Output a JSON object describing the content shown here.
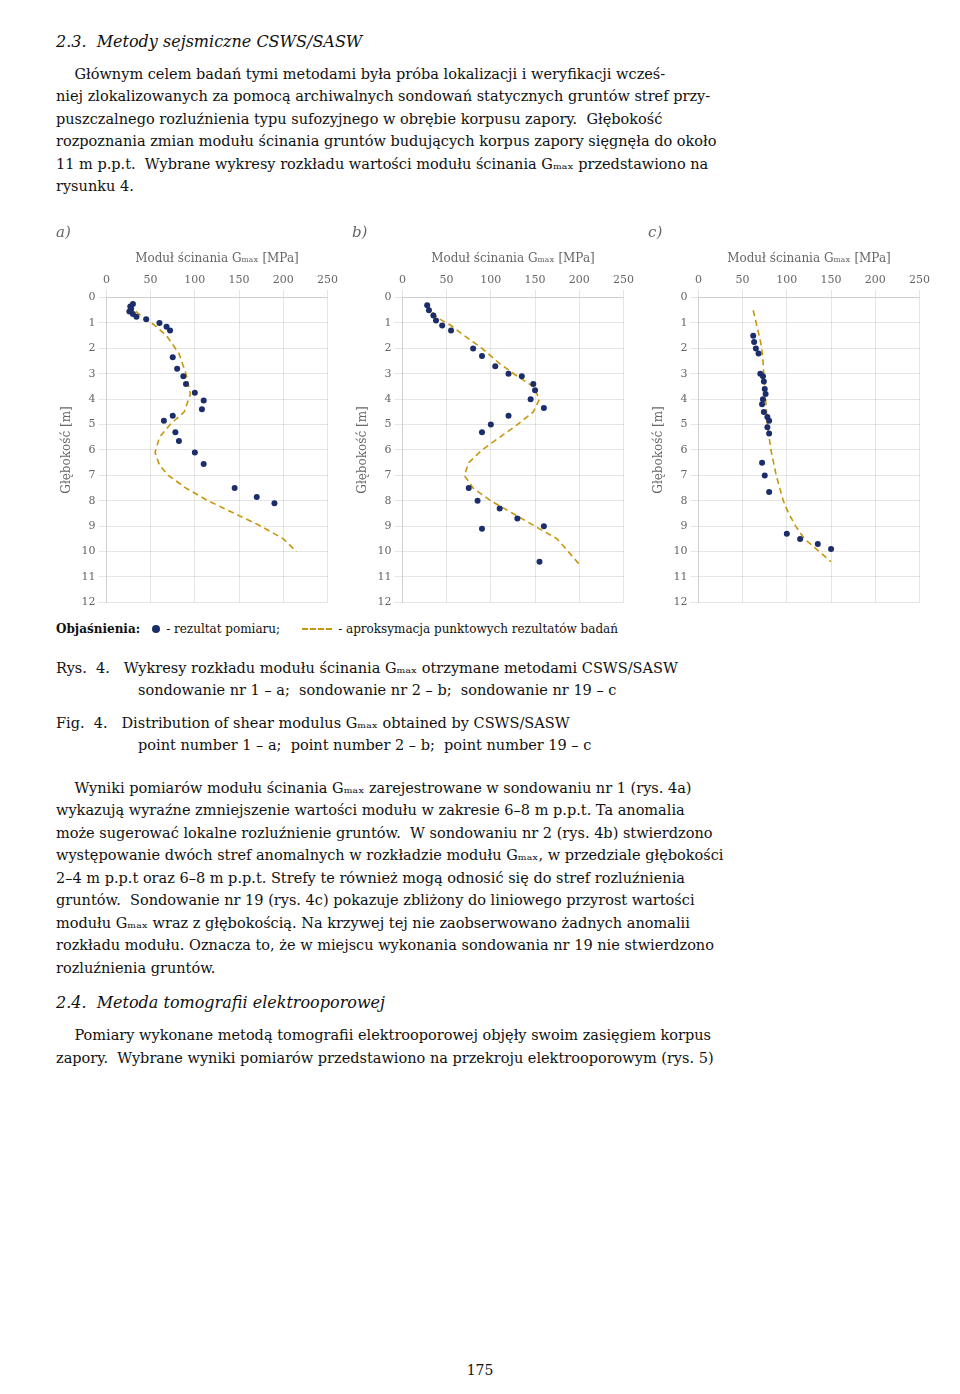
{
  "chart_data": [
    {
      "type": "scatter",
      "title": "a)",
      "x_label": "Moduł ścinania Gₘₐₓ [MPa]",
      "y_label": "Głębokość [m]",
      "xlim": [
        0,
        250
      ],
      "ylim": [
        12,
        0
      ],
      "xticks": [
        0,
        50,
        100,
        150,
        200,
        250
      ],
      "yticks": [
        0,
        1,
        2,
        3,
        4,
        5,
        6,
        7,
        8,
        9,
        10,
        11,
        12
      ],
      "grid": true,
      "legend": "bottom",
      "series": [
        {
          "name": "- rezultat pomiaru;",
          "type": "scatter",
          "color": "#1c2d6b",
          "marker": "circle",
          "x": [
            30,
            27,
            28,
            26,
            30,
            34,
            45,
            60,
            68,
            72,
            75,
            80,
            87,
            90,
            100,
            110,
            108,
            75,
            65,
            78,
            82,
            100,
            110,
            145,
            170,
            190
          ],
          "values": [
            0.25,
            0.35,
            0.45,
            0.55,
            0.65,
            0.75,
            0.85,
            1.0,
            1.15,
            1.3,
            2.35,
            2.8,
            3.1,
            3.4,
            3.75,
            4.05,
            4.4,
            4.65,
            4.85,
            5.3,
            5.65,
            6.1,
            6.55,
            7.5,
            7.85,
            8.1
          ]
        },
        {
          "name": "- aproksymacja punktowych rezultatów badań",
          "type": "line",
          "color": "#c8960a",
          "line_style": "dashed",
          "marker": "none",
          "x": [
            28,
            30,
            35,
            45,
            55,
            68,
            82,
            90,
            95,
            88,
            72,
            60,
            55,
            60,
            70,
            90,
            115,
            145,
            175,
            200,
            215
          ],
          "values": [
            0.2,
            0.4,
            0.6,
            0.85,
            1.1,
            1.5,
            2.2,
            3.0,
            3.8,
            4.5,
            5.0,
            5.5,
            6.1,
            6.6,
            7.0,
            7.5,
            8.0,
            8.5,
            9.0,
            9.5,
            10.0
          ]
        }
      ]
    },
    {
      "type": "scatter",
      "title": "b)",
      "x_label": "Moduł ścinania Gₘₐₓ [MPa]",
      "y_label": "Głębokość [m]",
      "xlim": [
        0,
        250
      ],
      "ylim": [
        12,
        0
      ],
      "xticks": [
        0,
        50,
        100,
        150,
        200,
        250
      ],
      "yticks": [
        0,
        1,
        2,
        3,
        4,
        5,
        6,
        7,
        8,
        9,
        10,
        11,
        12
      ],
      "grid": true,
      "legend": "bottom",
      "series": [
        {
          "name": "- rezultat pomiaru;",
          "type": "scatter",
          "color": "#1c2d6b",
          "marker": "circle",
          "x": [
            28,
            30,
            35,
            38,
            45,
            55,
            80,
            90,
            105,
            120,
            135,
            148,
            150,
            145,
            160,
            120,
            100,
            90,
            75,
            85,
            110,
            130,
            160,
            90,
            155
          ],
          "values": [
            0.3,
            0.5,
            0.7,
            0.9,
            1.1,
            1.3,
            2.0,
            2.3,
            2.7,
            3.0,
            3.1,
            3.4,
            3.65,
            4.0,
            4.35,
            4.65,
            5.0,
            5.3,
            7.5,
            8.0,
            8.3,
            8.7,
            9.0,
            9.1,
            10.4
          ]
        },
        {
          "name": "- aproksymacja punktowych rezultatów badań",
          "type": "line",
          "color": "#c8960a",
          "line_style": "dashed",
          "marker": "none",
          "x": [
            28,
            32,
            40,
            55,
            70,
            90,
            110,
            130,
            148,
            155,
            148,
            130,
            110,
            90,
            75,
            70,
            80,
            100,
            125,
            150,
            175,
            200
          ],
          "values": [
            0.25,
            0.5,
            0.8,
            1.1,
            1.5,
            2.0,
            2.6,
            3.1,
            3.5,
            4.0,
            4.5,
            5.0,
            5.5,
            6.0,
            6.5,
            7.0,
            7.5,
            8.0,
            8.5,
            9.0,
            9.5,
            10.5
          ]
        }
      ]
    },
    {
      "type": "scatter",
      "title": "c)",
      "x_label": "Moduł ścinania Gₘₐₓ [MPa]",
      "y_label": "Głębokość [m]",
      "xlim": [
        0,
        250
      ],
      "ylim": [
        12,
        0
      ],
      "xticks": [
        0,
        50,
        100,
        150,
        200,
        250
      ],
      "yticks": [
        0,
        1,
        2,
        3,
        4,
        5,
        6,
        7,
        8,
        9,
        10,
        11,
        12
      ],
      "grid": true,
      "legend": "bottom",
      "series": [
        {
          "name": "- rezultat pomiaru;",
          "type": "scatter",
          "color": "#1c2d6b",
          "marker": "circle",
          "x": [
            62,
            63,
            65,
            68,
            70,
            73,
            74,
            75,
            76,
            73,
            72,
            74,
            78,
            80,
            78,
            80,
            72,
            75,
            80,
            100,
            115,
            135,
            150
          ],
          "values": [
            1.5,
            1.75,
            2.0,
            2.2,
            3.0,
            3.1,
            3.3,
            3.6,
            3.8,
            4.0,
            4.2,
            4.5,
            4.7,
            4.85,
            5.1,
            5.35,
            6.5,
            7.0,
            7.65,
            9.3,
            9.5,
            9.7,
            9.9
          ]
        },
        {
          "name": "- aproksymacja punktowych rezultatów badań",
          "type": "line",
          "color": "#c8960a",
          "line_style": "dashed",
          "marker": "none",
          "x": [
            62,
            64,
            66,
            68,
            70,
            72,
            73,
            74,
            75,
            76,
            77,
            78,
            80,
            82,
            85,
            88,
            92,
            96,
            102,
            110,
            120,
            130,
            140,
            150
          ],
          "values": [
            0.5,
            0.8,
            1.1,
            1.4,
            1.7,
            2.1,
            2.5,
            3.0,
            3.5,
            4.0,
            4.5,
            5.0,
            5.5,
            6.0,
            6.5,
            7.0,
            7.5,
            8.0,
            8.5,
            9.0,
            9.5,
            9.8,
            10.1,
            10.4
          ]
        }
      ]
    }
  ],
  "annotations": [
    "2.3.  Metody sejsmiczne CSWS/SASW",
    "    Głównym celem badań tymi metodami była próba lokalizacji i weryfikacji wcześ-\nniej zlokalizowanych za pomocą archiwalnych sondowań statycznych gruntów stref przy-\npuszczalnego rozluźnienia typu sufozyjnego w obrębie korpusu zapory.  Głębokość\nrozpoznania zmian modułu ścinania gruntów budujących korpus zapory sięgnęła do około\n11 m p.p.t.  Wybrane wykresy rozkładu wartości modułu ścinania Gₘₐₓ przedstawiono na\nrysunku 4.",
    "Objaśnienia:",
    "Rys.  4.   Wykresy rozkładu modułu ścinania Gₘₐₓ otrzymane metodami CSWS/SASW",
    "sondowanie nr 1 – a;  sondowanie nr 2 – b;  sondowanie nr 19 – c",
    "Fig.  4.   Distribution of shear modulus Gₘₐₓ obtained by CSWS/SASW",
    "point number 1 – a;  point number 2 – b;  point number 19 – c",
    "    Wyniki pomiarów modułu ścinania Gₘₐₓ zarejestrowane w sondowaniu nr 1 (rys. 4a)\nwykazują wyraźne zmniejszenie wartości modułu w zakresie 6–8 m p.p.t. Ta anomalia\nmoże sugerować lokalne rozluźnienie gruntów.  W sondowaniu nr 2 (rys. 4b) stwierdzono\nwystępowanie dwóch stref anomalnych w rozkładzie modułu Gₘₐₓ, w przedziale głębokości\n2–4 m p.p.t oraz 6–8 m p.p.t. Strefy te również mogą odnosić się do stref rozluźnienia\ngruntów.  Sondowanie nr 19 (rys. 4c) pokazuje zbliżony do liniowego przyrost wartości\nmodułu Gₘₐₓ wraz z głębokością. Na krzywej tej nie zaobserwowano żadnych anomalii\nrozkładu modułu. Oznacza to, że w miejscu wykonania sondowania nr 19 nie stwierdzono\nrozluźnienia gruntów.",
    "2.4.  Metoda tomografii elektrooporowej",
    "    Pomiary wykonane metodą tomografii elektrooporowej objęły swoim zasięgiem korpus\nzapory.  Wybrane wyniki pomiarów przedstawiono na przekroju elektrooporowym (rys. 5)",
    "175"
  ]
}
